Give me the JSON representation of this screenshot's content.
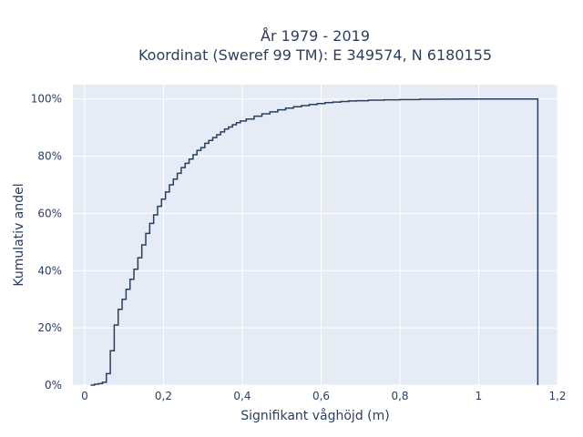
{
  "chart_data": {
    "type": "line",
    "line_shape": "step",
    "title_line1": "År 1979 - 2019",
    "title_line2": "Koordinat (Sweref 99 TM): E 349574, N 6180155",
    "xlabel": "Signifikant våghöjd (m)",
    "ylabel": "Kumulativ andel",
    "xlim": [
      -0.03,
      1.2
    ],
    "ylim": [
      0,
      1.05
    ],
    "x_ticks": [
      0,
      0.2,
      0.4,
      0.6,
      0.8,
      1,
      1.2
    ],
    "x_tick_labels": [
      "0",
      "0,2",
      "0,4",
      "0,6",
      "0,8",
      "1",
      "1,2"
    ],
    "y_ticks": [
      0,
      0.2,
      0.4,
      0.6,
      0.8,
      1.0
    ],
    "y_tick_labels": [
      "0%",
      "20%",
      "40%",
      "60%",
      "80%",
      "100%"
    ],
    "grid": true,
    "colors": {
      "plot_bg": "#e5ecf6",
      "grid": "#ffffff",
      "line": "#2a3f5f",
      "text": "#2a3f5f"
    },
    "x": [
      0.015,
      0.025,
      0.035,
      0.045,
      0.055,
      0.065,
      0.075,
      0.085,
      0.095,
      0.105,
      0.115,
      0.125,
      0.135,
      0.145,
      0.155,
      0.165,
      0.175,
      0.185,
      0.195,
      0.205,
      0.215,
      0.225,
      0.235,
      0.245,
      0.255,
      0.265,
      0.275,
      0.285,
      0.295,
      0.305,
      0.315,
      0.325,
      0.335,
      0.345,
      0.355,
      0.365,
      0.375,
      0.385,
      0.395,
      0.41,
      0.43,
      0.45,
      0.47,
      0.49,
      0.51,
      0.53,
      0.55,
      0.57,
      0.59,
      0.61,
      0.63,
      0.65,
      0.67,
      0.69,
      0.72,
      0.76,
      0.8,
      0.85,
      0.9,
      0.95,
      1.0,
      1.05,
      1.1,
      1.15
    ],
    "y": [
      0.0,
      0.003,
      0.005,
      0.01,
      0.04,
      0.12,
      0.21,
      0.265,
      0.3,
      0.335,
      0.37,
      0.405,
      0.445,
      0.49,
      0.53,
      0.565,
      0.595,
      0.625,
      0.65,
      0.675,
      0.7,
      0.72,
      0.74,
      0.76,
      0.775,
      0.79,
      0.805,
      0.82,
      0.83,
      0.845,
      0.855,
      0.865,
      0.875,
      0.885,
      0.895,
      0.902,
      0.91,
      0.917,
      0.923,
      0.93,
      0.94,
      0.948,
      0.955,
      0.962,
      0.968,
      0.973,
      0.977,
      0.981,
      0.984,
      0.987,
      0.989,
      0.991,
      0.993,
      0.994,
      0.996,
      0.997,
      0.998,
      0.999,
      0.9995,
      1.0,
      1.0,
      1.0,
      1.0,
      1.0
    ],
    "end_drop_x": 1.15
  }
}
